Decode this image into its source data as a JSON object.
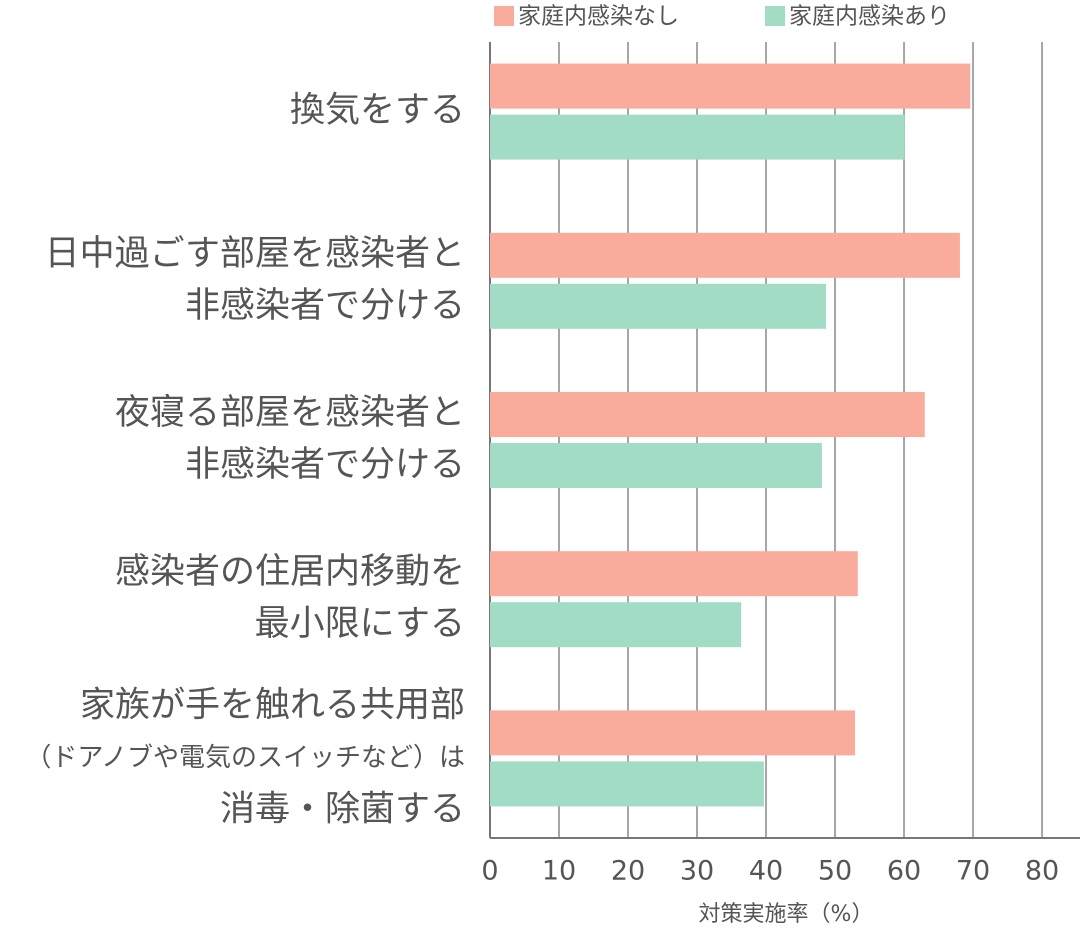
{
  "chart_data": {
    "type": "bar",
    "orientation": "horizontal",
    "categories": [
      [
        "換気をする"
      ],
      [
        "日中過ごす部屋を感染者と",
        "非感染者で分ける"
      ],
      [
        "夜寝る部屋を感染者と",
        "非感染者で分ける"
      ],
      [
        "感染者の住居内移動を",
        "最小限にする"
      ],
      [
        "家族が手を触れる共用部",
        "（ドアノブや電気のスイッチなど）は",
        "消毒・除菌する"
      ]
    ],
    "series": [
      {
        "name": "家庭内感染なし",
        "color": "#f9ab9c",
        "values": [
          69.6,
          68.1,
          63.0,
          53.3,
          52.9
        ]
      },
      {
        "name": "家庭内感染あり",
        "color": "#a2dcc4",
        "values": [
          60.1,
          48.7,
          48.1,
          36.4,
          39.7
        ]
      }
    ],
    "x_label": "対策実施率（%）",
    "xlim": [
      0,
      85.5
    ],
    "xticks": [
      0,
      10,
      20,
      30,
      40,
      50,
      60,
      70,
      80
    ],
    "grid": true,
    "legend": "top"
  }
}
